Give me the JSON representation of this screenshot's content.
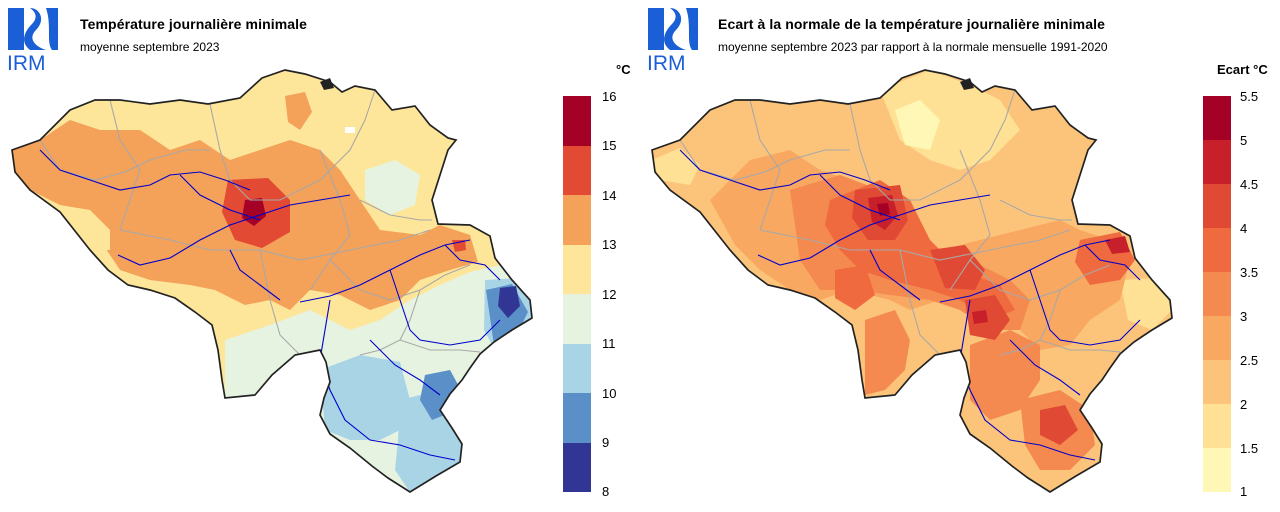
{
  "org_logo_text": "IRM",
  "left": {
    "title": "Température journalière minimale",
    "subtitle": "moyenne septembre 2023",
    "unit": "°C",
    "legend": {
      "ticks": [
        "16",
        "15",
        "14",
        "13",
        "12",
        "11",
        "10",
        "9",
        "8"
      ],
      "colors": [
        "#a50026",
        "#e34a33",
        "#f4a15a",
        "#fde69a",
        "#e6f3e1",
        "#a9d4e6",
        "#5a8fc7",
        "#313695"
      ]
    }
  },
  "right": {
    "title": "Ecart à la normale de la température journalière minimale",
    "subtitle": "moyenne septembre 2023 par rapport à la normale mensuelle 1991-2020",
    "unit": "Ecart °C",
    "legend": {
      "ticks": [
        "5.5",
        "5",
        "4.5",
        "4",
        "3.5",
        "3",
        "2.5",
        "2",
        "1.5",
        "1"
      ],
      "colors": [
        "#a50026",
        "#c8202a",
        "#e04a34",
        "#ef6a3e",
        "#f48a4f",
        "#f8a860",
        "#fcc47a",
        "#fee194",
        "#fff7b5"
      ]
    }
  }
}
